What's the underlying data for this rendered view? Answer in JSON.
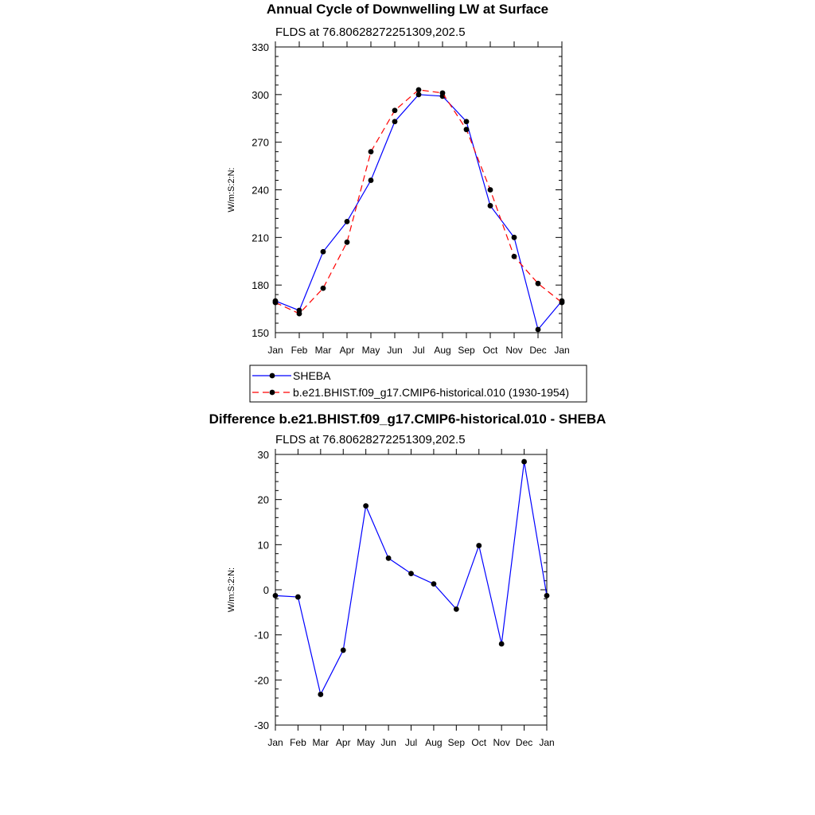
{
  "chart_data": [
    {
      "type": "line",
      "title": "Annual Cycle of Downwelling LW at Surface",
      "subtitle": "FLDS at 76.80628272251309,202.5",
      "ylabel": "W/m:S:2:N:",
      "xlabel": "",
      "categories": [
        "Jan",
        "Feb",
        "Mar",
        "Apr",
        "May",
        "Jun",
        "Jul",
        "Aug",
        "Sep",
        "Oct",
        "Nov",
        "Dec",
        "Jan"
      ],
      "ylim": [
        150,
        330
      ],
      "yticks": [
        "150",
        "180",
        "210",
        "240",
        "270",
        "300",
        "330"
      ],
      "legend_position": "bottom",
      "series": [
        {
          "name": "SHEBA",
          "color": "#0000ff",
          "dash": "solid",
          "values": [
            170,
            164,
            201,
            220,
            246,
            283,
            300,
            299,
            283,
            230,
            210,
            152,
            170
          ]
        },
        {
          "name": "b.e21.BHIST.f09_g17.CMIP6-historical.010 (1930-1954)",
          "color": "#ff0000",
          "dash": "dashed",
          "values": [
            169,
            162,
            178,
            207,
            264,
            290,
            303,
            301,
            278,
            240,
            198,
            181,
            169
          ]
        }
      ]
    },
    {
      "type": "line",
      "title": "Difference b.e21.BHIST.f09_g17.CMIP6-historical.010 - SHEBA",
      "subtitle": "FLDS at 76.80628272251309,202.5",
      "ylabel": "W/m:S:2:N:",
      "xlabel": "",
      "categories": [
        "Jan",
        "Feb",
        "Mar",
        "Apr",
        "May",
        "Jun",
        "Jul",
        "Aug",
        "Sep",
        "Oct",
        "Nov",
        "Dec",
        "Jan"
      ],
      "ylim": [
        -30,
        30
      ],
      "yticks": [
        "-30",
        "-20",
        "-10",
        "0",
        "10",
        "20",
        "30"
      ],
      "series": [
        {
          "color": "#0000ff",
          "values": [
            -1.3,
            -1.6,
            -23.2,
            -13.4,
            18.6,
            7.0,
            3.6,
            1.3,
            -4.3,
            9.8,
            -12.0,
            28.4,
            -1.3
          ]
        }
      ]
    }
  ]
}
